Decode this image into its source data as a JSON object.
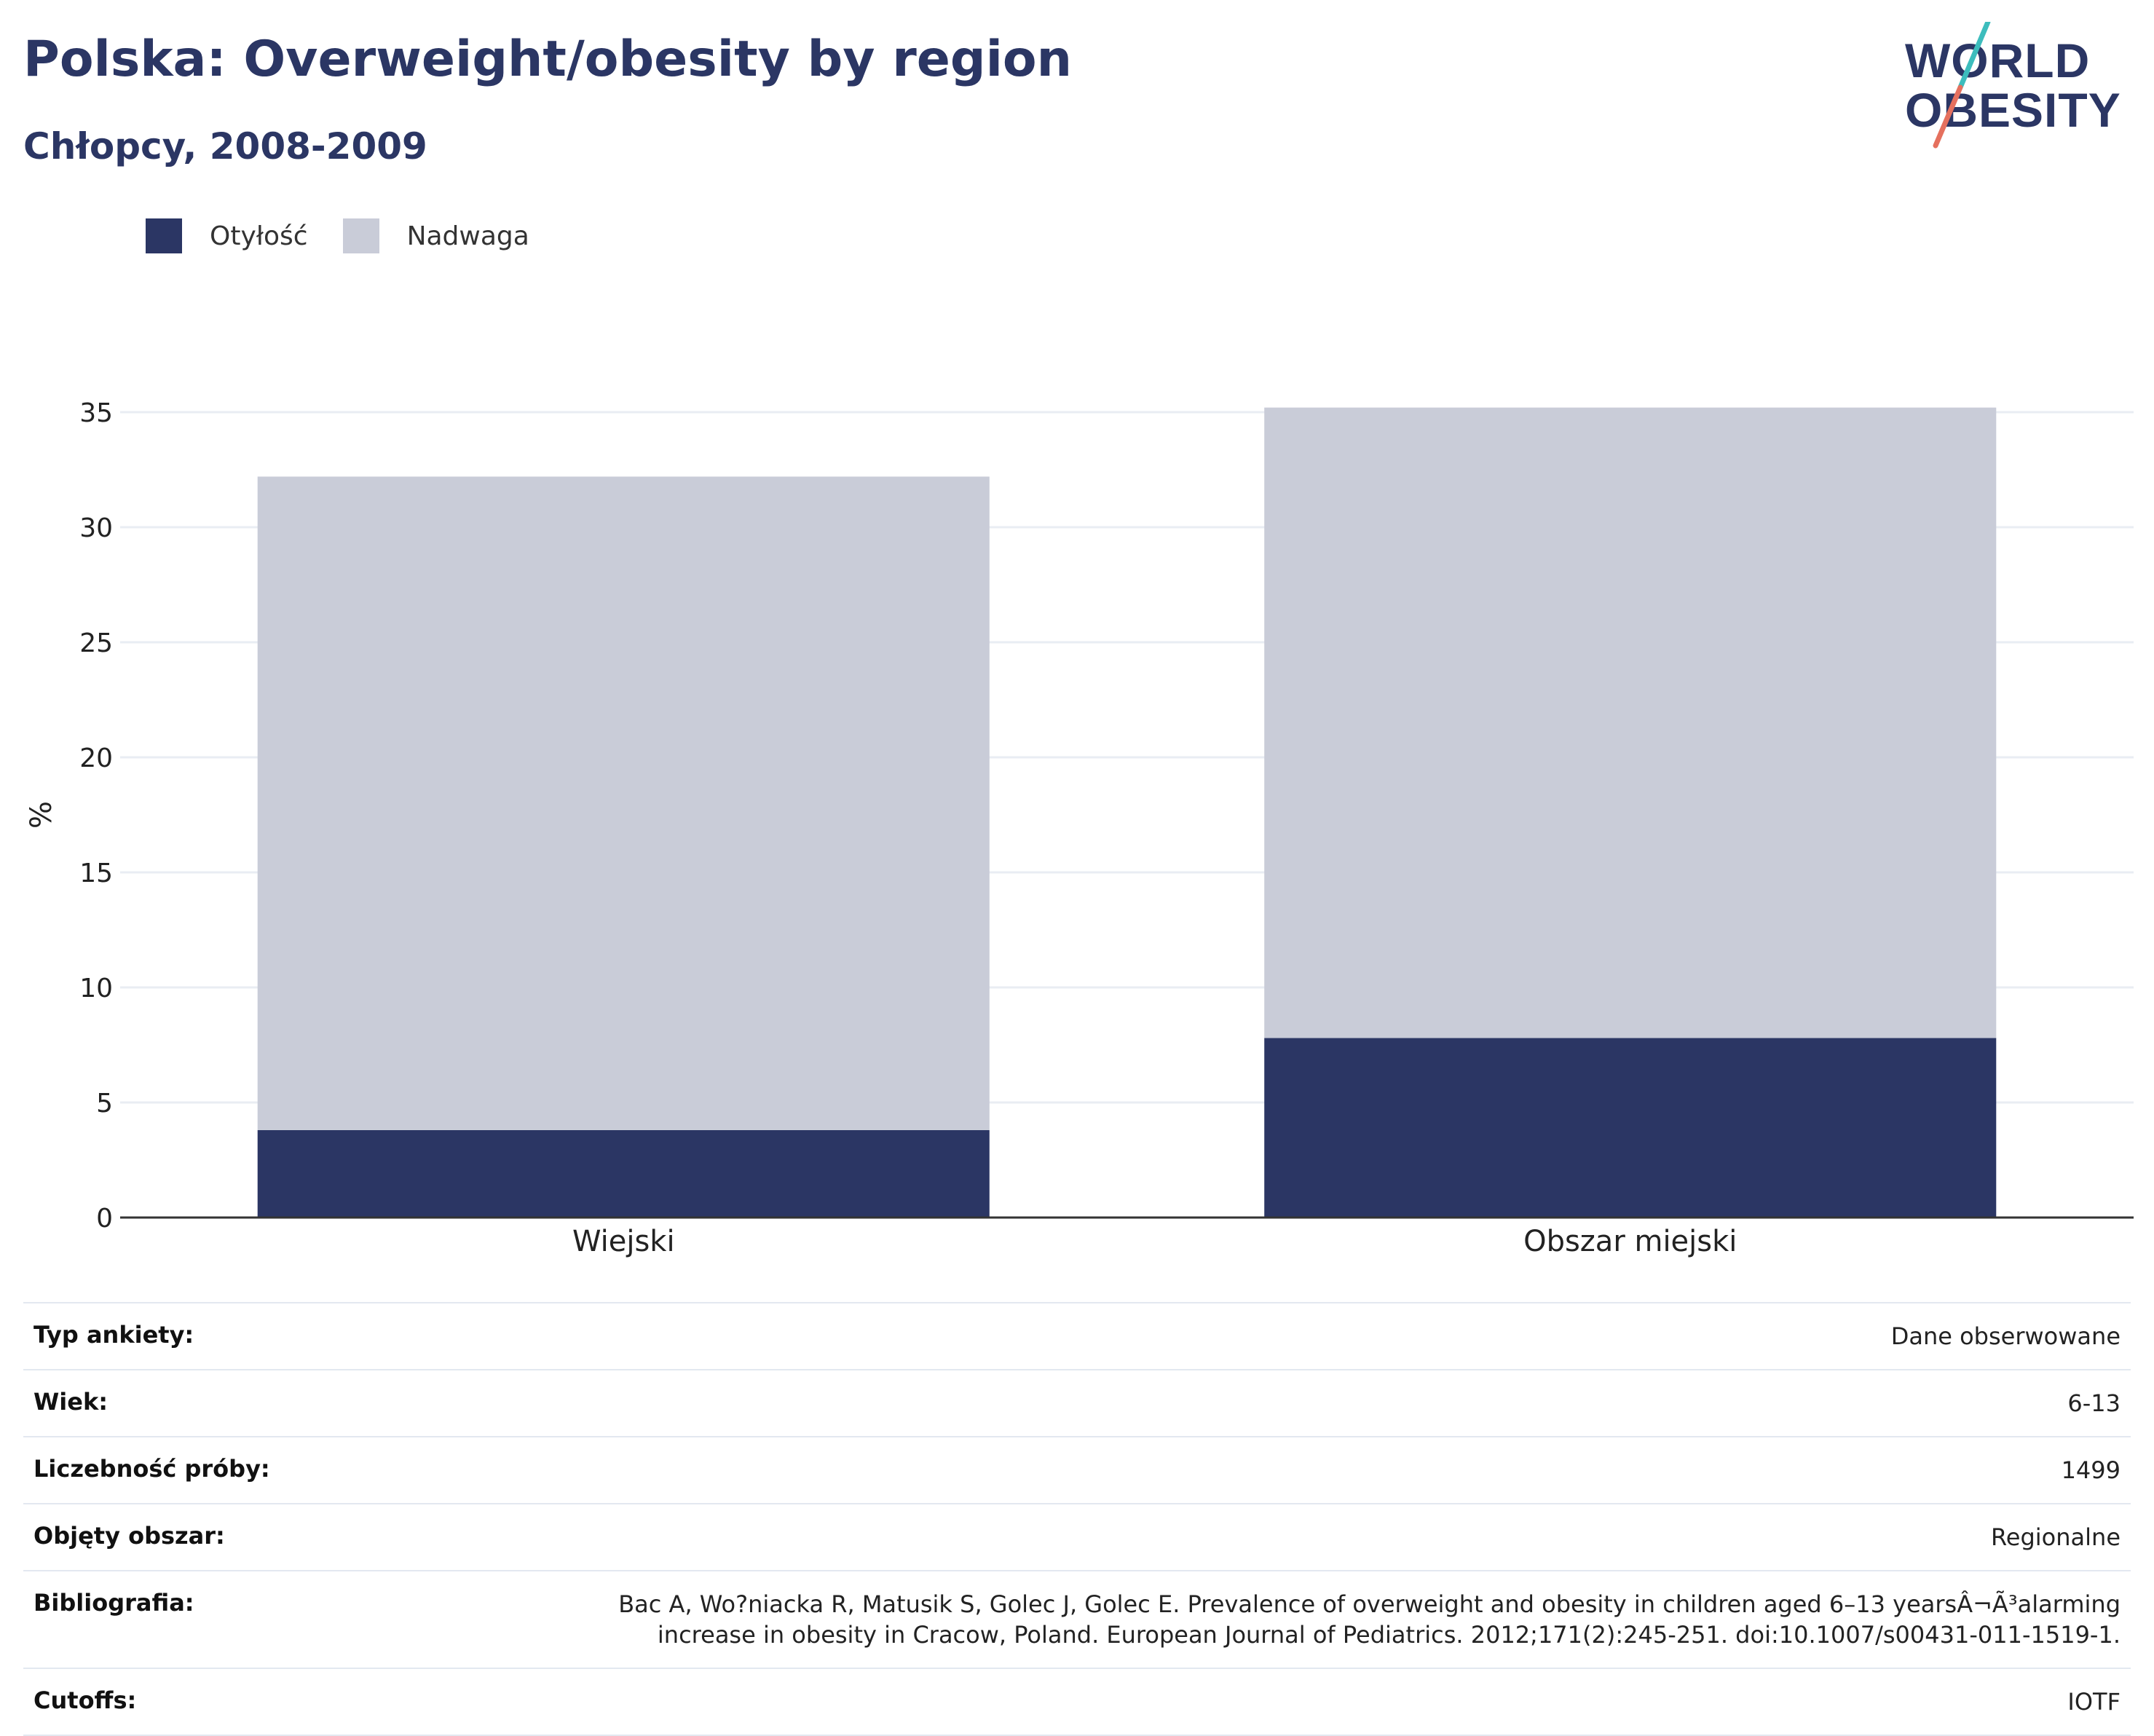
{
  "header": {
    "title": "Polska: Overweight/obesity by region",
    "subtitle": "Chłopcy, 2008-2009"
  },
  "logo": {
    "line1": "WORLD",
    "line2": "OBESITY",
    "colors": {
      "text": "#2b3664",
      "slash_top": "#3dbdbd",
      "slash_bottom": "#e5705e"
    }
  },
  "legend": [
    {
      "label": "Otyłość",
      "color": "#2b3664"
    },
    {
      "label": "Nadwaga",
      "color": "#c9ccd8"
    }
  ],
  "chart_data": {
    "type": "bar",
    "stacked": true,
    "categories": [
      "Wiejski",
      "Obszar miejski"
    ],
    "series": [
      {
        "name": "Otyłość",
        "values": [
          3.8,
          7.8
        ],
        "color": "#2b3664"
      },
      {
        "name": "Nadwaga",
        "values": [
          28.4,
          27.4
        ],
        "color": "#c9ccd8"
      }
    ],
    "ylabel": "%",
    "ylim": [
      0,
      35
    ],
    "yticks": [
      0,
      5,
      10,
      15,
      20,
      25,
      30,
      35
    ],
    "grid": true,
    "legend_position": "top-left"
  },
  "info": [
    {
      "key": "Typ ankiety:",
      "value": "Dane obserwowane"
    },
    {
      "key": "Wiek:",
      "value": "6-13"
    },
    {
      "key": "Liczebność próby:",
      "value": "1499"
    },
    {
      "key": "Objęty obszar:",
      "value": "Regionalne"
    },
    {
      "key": "Bibliografia:",
      "value": "Bac A, Wo?niacka R, Matusik S, Golec J, Golec E. Prevalence of overweight and obesity in children aged 6–13 yearsÂ¬Ã³alarming increase in obesity in Cracow, Poland. European Journal of Pediatrics. 2012;171(2):245-251. doi:10.1007/s00431-011-1519-1."
    },
    {
      "key": "Cutoffs:",
      "value": "IOTF"
    }
  ]
}
